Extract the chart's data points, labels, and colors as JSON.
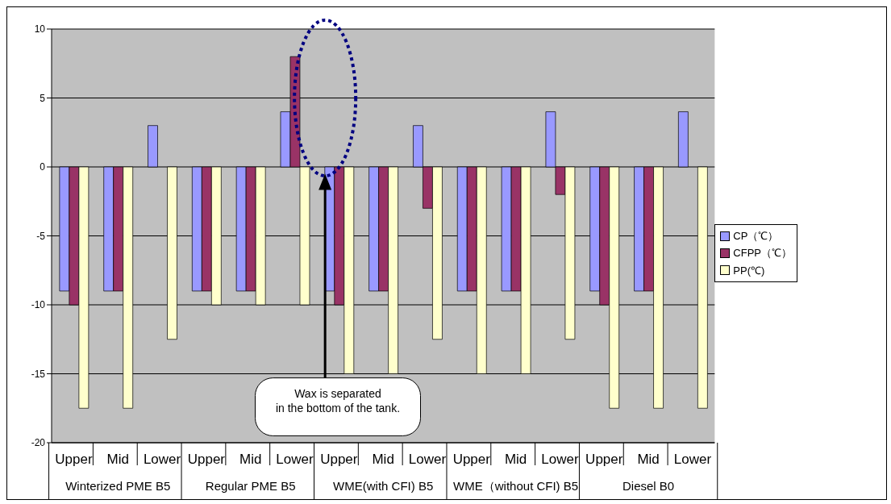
{
  "chart_data": {
    "type": "bar",
    "categories": [
      "Upper",
      "Mid",
      "Lower",
      "Upper",
      "Mid",
      "Lower",
      "Upper",
      "Mid",
      "Lower",
      "Upper",
      "Mid",
      "Lower",
      "Upper",
      "Mid",
      "Lower"
    ],
    "series": [
      {
        "name": "CP（℃）",
        "color": "#9999ff",
        "values": [
          -9,
          -9,
          3,
          -9,
          -9,
          4,
          -9,
          -9,
          3,
          -9,
          -9,
          4,
          -9,
          -9,
          4
        ]
      },
      {
        "name": "CFPP（℃）",
        "color": "#993366",
        "values": [
          -10,
          -9,
          null,
          -9,
          -9,
          8,
          -10,
          -9,
          -3,
          -9,
          -9,
          -2,
          -10,
          -9,
          null
        ]
      },
      {
        "name": "PP(℃)",
        "color": "#ffffcc",
        "values": [
          -17.5,
          -17.5,
          -12.5,
          -10,
          -10,
          -10,
          -15,
          -15,
          -12.5,
          -15,
          -15,
          -12.5,
          -17.5,
          -17.5,
          -17.5
        ]
      }
    ],
    "annotations": [
      "Winterized PME B5",
      "Regular PME B5",
      "WME(with CFI) B5",
      "WME（without CFI) B5",
      "Diesel B0",
      "Wax is separated\nin the bottom of the tank."
    ],
    "ylim": [
      -20,
      10
    ],
    "yticks": [
      -20,
      -15,
      -10,
      -5,
      0,
      5,
      10
    ],
    "grid": "y",
    "legend": "right"
  }
}
